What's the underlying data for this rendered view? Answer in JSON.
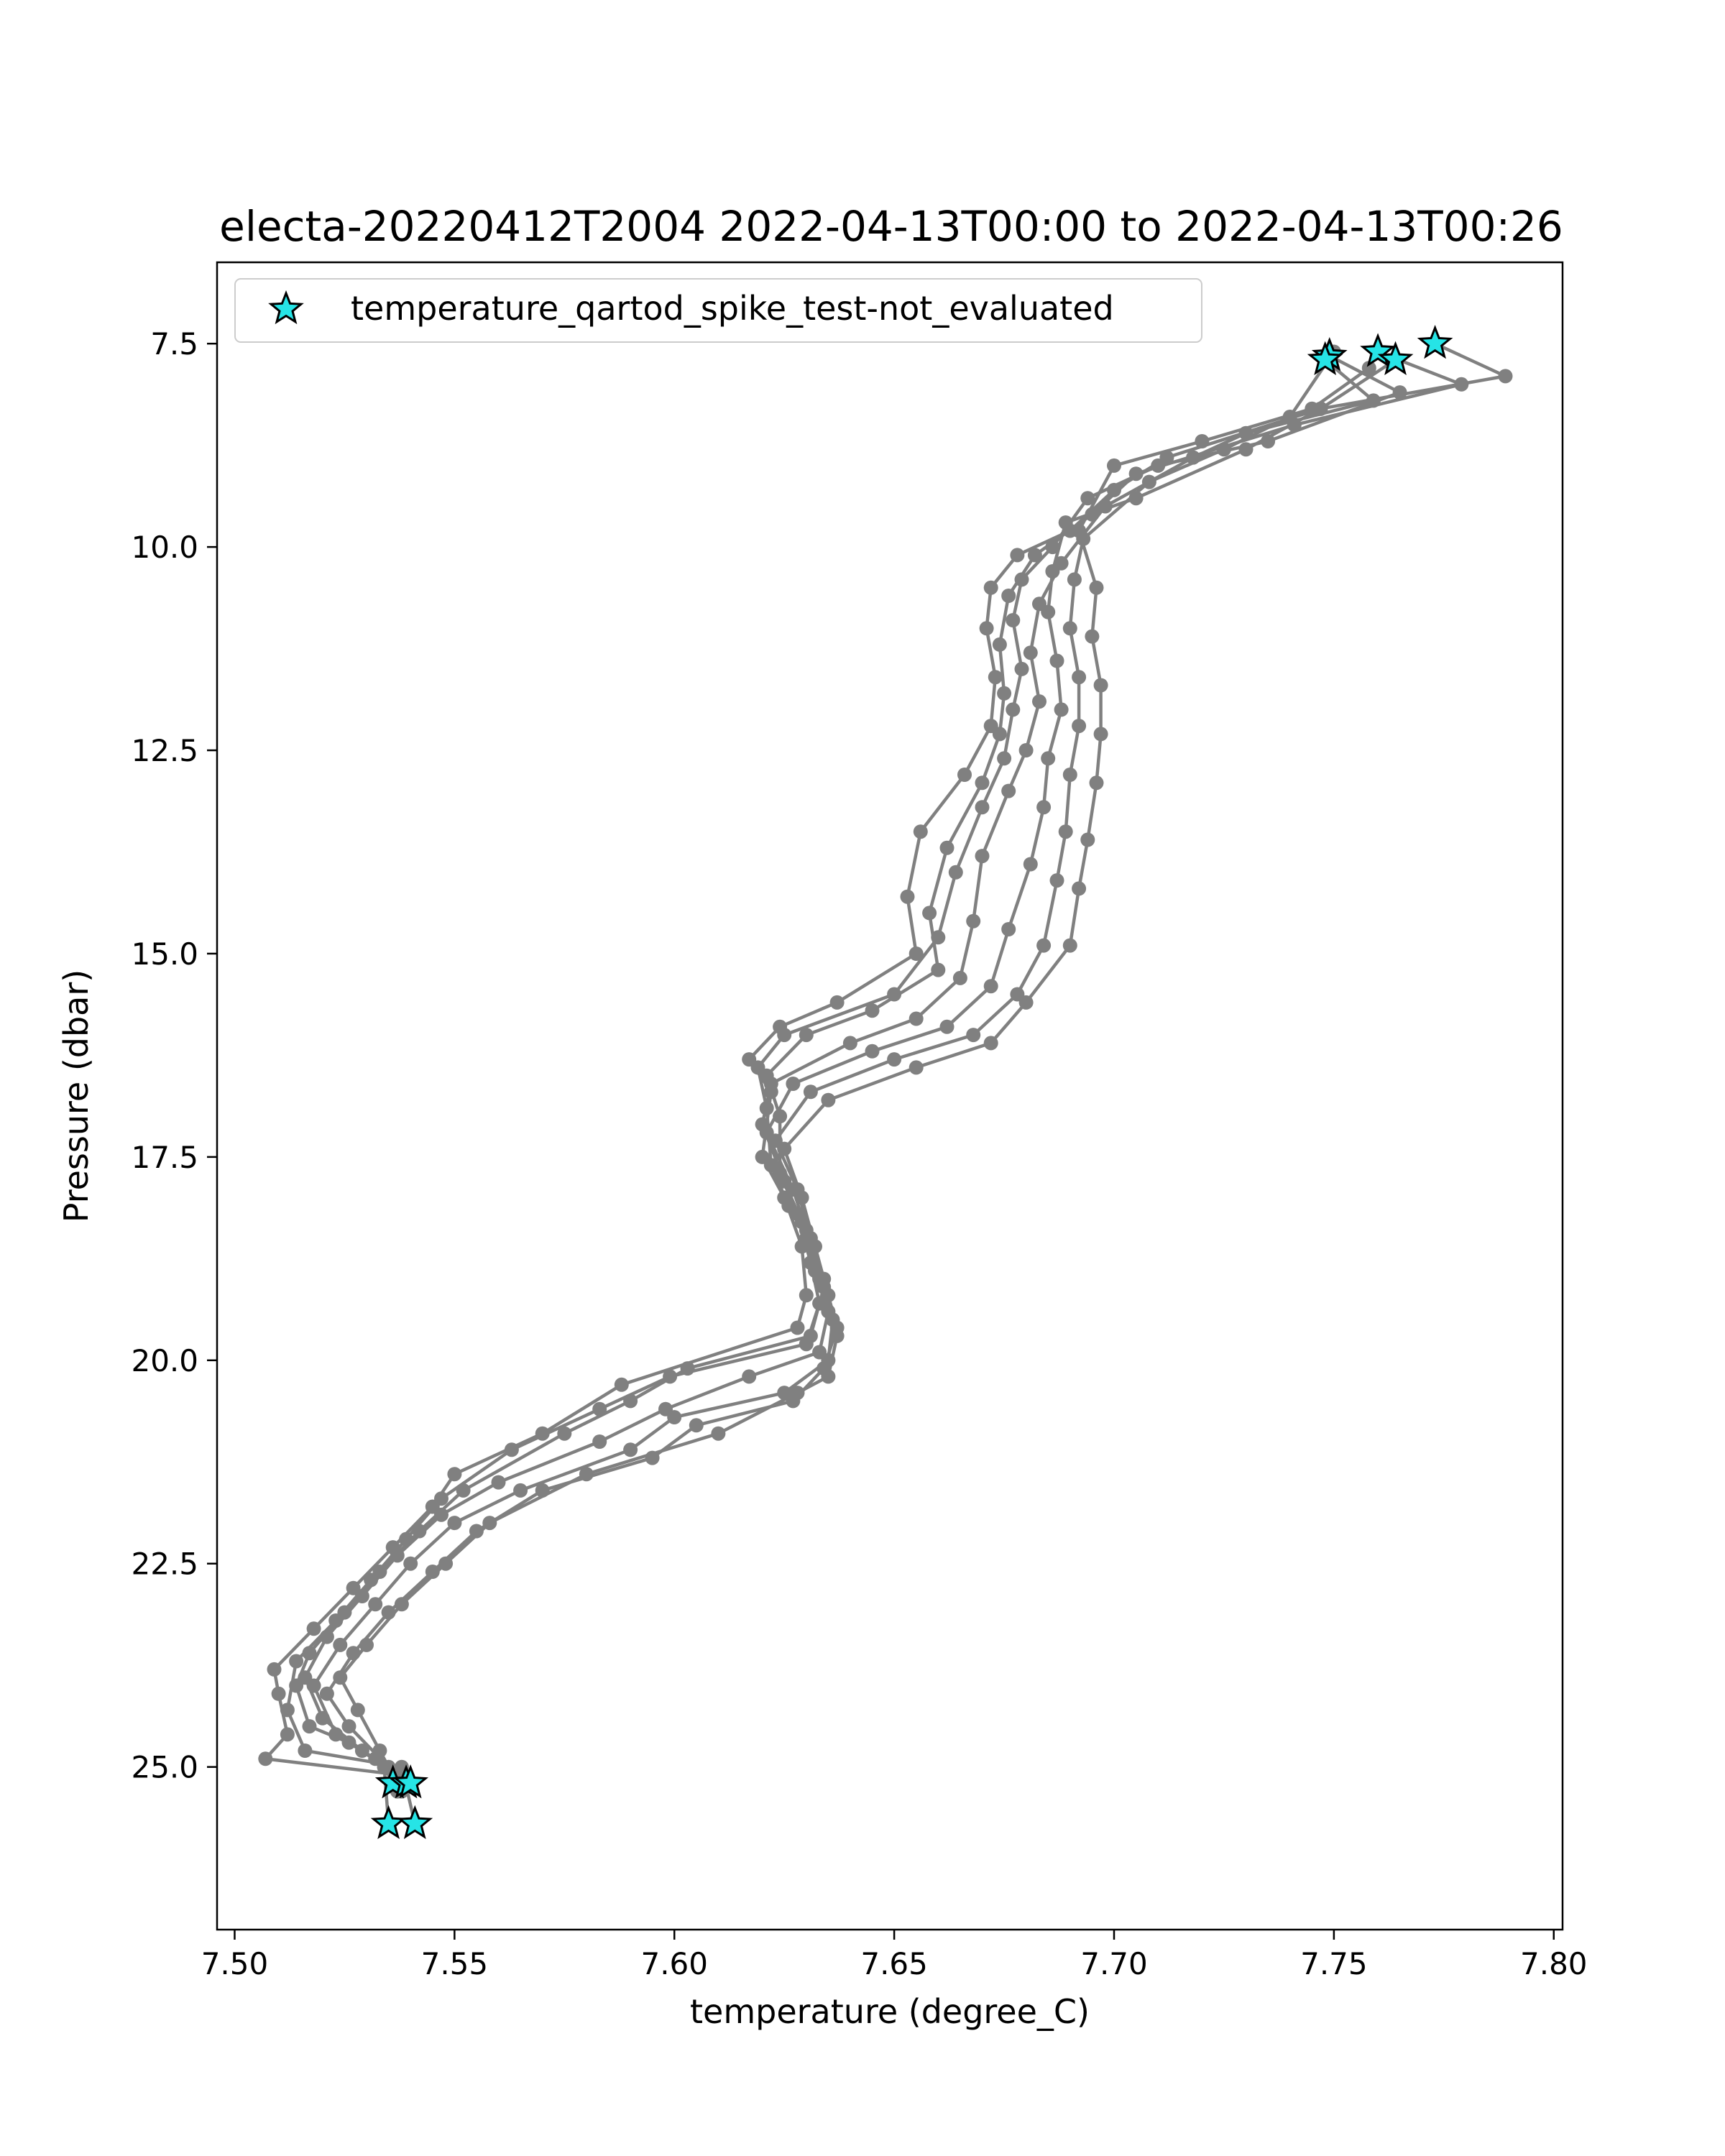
{
  "chart_data": {
    "type": "line",
    "title": "electa-20220412T2004 2022-04-13T00:00 to 2022-04-13T00:26",
    "xlabel": "temperature (degree_C)",
    "ylabel": "Pressure (dbar)",
    "xlim": [
      7.496,
      7.802
    ],
    "ylim": [
      27.0,
      6.5
    ],
    "y_inverted": true,
    "xticks": [
      7.5,
      7.55,
      7.6,
      7.65,
      7.7,
      7.75,
      7.8
    ],
    "xtick_labels": [
      "7.50",
      "7.55",
      "7.60",
      "7.65",
      "7.70",
      "7.75",
      "7.80"
    ],
    "yticks": [
      7.5,
      10.0,
      12.5,
      15.0,
      17.5,
      20.0,
      22.5,
      25.0
    ],
    "ytick_labels": [
      "7.5",
      "10.0",
      "12.5",
      "15.0",
      "17.5",
      "20.0",
      "22.5",
      "25.0"
    ],
    "grid": false,
    "legend_position": "top-left",
    "series": [
      {
        "kind": "line",
        "color": "#808080",
        "profiles": [
          [
            [
              7.773,
              7.5
            ],
            [
              7.789,
              7.9
            ],
            [
              7.747,
              8.3
            ],
            [
              7.712,
              8.9
            ],
            [
              7.7,
              9.3
            ],
            [
              7.69,
              9.8
            ],
            [
              7.678,
              10.1
            ],
            [
              7.672,
              10.5
            ],
            [
              7.671,
              11.0
            ],
            [
              7.673,
              11.6
            ],
            [
              7.672,
              12.2
            ],
            [
              7.666,
              12.8
            ],
            [
              7.656,
              13.5
            ],
            [
              7.653,
              14.3
            ],
            [
              7.655,
              15.0
            ],
            [
              7.637,
              15.6
            ],
            [
              7.624,
              15.9
            ],
            [
              7.617,
              16.3
            ],
            [
              7.622,
              16.7
            ],
            [
              7.62,
              17.5
            ],
            [
              7.625,
              18.0
            ],
            [
              7.629,
              18.6
            ],
            [
              7.63,
              19.2
            ],
            [
              7.628,
              19.6
            ],
            [
              7.588,
              20.3
            ],
            [
              7.57,
              20.9
            ],
            [
              7.55,
              21.4
            ],
            [
              7.545,
              21.8
            ],
            [
              7.536,
              22.3
            ],
            [
              7.527,
              22.8
            ],
            [
              7.518,
              23.3
            ],
            [
              7.509,
              23.8
            ],
            [
              7.51,
              24.1
            ],
            [
              7.512,
              24.6
            ],
            [
              7.507,
              24.9
            ],
            [
              7.538,
              25.1
            ],
            [
              7.536,
              25.2
            ]
          ],
          [
            [
              7.76,
              7.6
            ],
            [
              7.779,
              8.0
            ],
            [
              7.741,
              8.5
            ],
            [
              7.705,
              9.1
            ],
            [
              7.695,
              9.6
            ],
            [
              7.682,
              10.1
            ],
            [
              7.676,
              10.6
            ],
            [
              7.674,
              11.2
            ],
            [
              7.675,
              11.8
            ],
            [
              7.674,
              12.3
            ],
            [
              7.67,
              12.9
            ],
            [
              7.662,
              13.7
            ],
            [
              7.658,
              14.5
            ],
            [
              7.66,
              15.2
            ],
            [
              7.645,
              15.7
            ],
            [
              7.63,
              16.0
            ],
            [
              7.621,
              16.5
            ],
            [
              7.624,
              17.0
            ],
            [
              7.624,
              17.7
            ],
            [
              7.628,
              18.2
            ],
            [
              7.631,
              18.8
            ],
            [
              7.633,
              19.3
            ],
            [
              7.63,
              19.8
            ],
            [
              7.599,
              20.2
            ],
            [
              7.583,
              20.6
            ],
            [
              7.563,
              21.1
            ],
            [
              7.547,
              21.7
            ],
            [
              7.539,
              22.2
            ],
            [
              7.531,
              22.7
            ],
            [
              7.523,
              23.2
            ],
            [
              7.514,
              23.7
            ],
            [
              7.512,
              24.3
            ],
            [
              7.516,
              24.8
            ],
            [
              7.538,
              25.0
            ],
            [
              7.541,
              25.7
            ]
          ],
          [
            [
              7.749,
              7.65
            ],
            [
              7.765,
              8.1
            ],
            [
              7.735,
              8.7
            ],
            [
              7.71,
              9.0
            ],
            [
              7.694,
              9.4
            ],
            [
              7.686,
              10.0
            ],
            [
              7.679,
              10.4
            ],
            [
              7.677,
              10.9
            ],
            [
              7.679,
              11.5
            ],
            [
              7.677,
              12.0
            ],
            [
              7.675,
              12.6
            ],
            [
              7.67,
              13.2
            ],
            [
              7.664,
              14.0
            ],
            [
              7.66,
              14.8
            ],
            [
              7.65,
              15.5
            ],
            [
              7.625,
              16.0
            ],
            [
              7.619,
              16.4
            ],
            [
              7.621,
              16.9
            ],
            [
              7.622,
              17.6
            ],
            [
              7.626,
              18.1
            ],
            [
              7.63,
              18.5
            ],
            [
              7.634,
              19.1
            ],
            [
              7.631,
              19.7
            ],
            [
              7.603,
              20.1
            ],
            [
              7.59,
              20.5
            ],
            [
              7.575,
              20.9
            ],
            [
              7.552,
              21.6
            ],
            [
              7.542,
              22.1
            ],
            [
              7.533,
              22.6
            ],
            [
              7.525,
              23.1
            ],
            [
              7.517,
              23.6
            ],
            [
              7.514,
              24.0
            ],
            [
              7.517,
              24.5
            ],
            [
              7.526,
              24.7
            ],
            [
              7.54,
              25.2
            ]
          ],
          [
            [
              7.748,
              7.7
            ],
            [
              7.759,
              8.2
            ],
            [
              7.73,
              8.6
            ],
            [
              7.718,
              8.9
            ],
            [
              7.698,
              9.5
            ],
            [
              7.688,
              10.2
            ],
            [
              7.683,
              10.7
            ],
            [
              7.681,
              11.3
            ],
            [
              7.683,
              11.9
            ],
            [
              7.68,
              12.5
            ],
            [
              7.676,
              13.0
            ],
            [
              7.67,
              13.8
            ],
            [
              7.668,
              14.6
            ],
            [
              7.665,
              15.3
            ],
            [
              7.655,
              15.8
            ],
            [
              7.64,
              16.1
            ],
            [
              7.622,
              16.6
            ],
            [
              7.62,
              17.1
            ],
            [
              7.625,
              17.8
            ],
            [
              7.629,
              18.3
            ],
            [
              7.632,
              18.9
            ],
            [
              7.635,
              19.4
            ],
            [
              7.633,
              19.9
            ],
            [
              7.617,
              20.2
            ],
            [
              7.598,
              20.6
            ],
            [
              7.583,
              21.0
            ],
            [
              7.56,
              21.5
            ],
            [
              7.547,
              21.9
            ],
            [
              7.537,
              22.4
            ],
            [
              7.529,
              22.9
            ],
            [
              7.521,
              23.4
            ],
            [
              7.516,
              23.9
            ],
            [
              7.52,
              24.4
            ],
            [
              7.529,
              24.8
            ],
            [
              7.534,
              25.0
            ],
            [
              7.535,
              25.7
            ]
          ],
          [
            [
              7.764,
              7.7
            ],
            [
              7.747,
              8.3
            ],
            [
              7.73,
              8.8
            ],
            [
              7.705,
              9.4
            ],
            [
              7.689,
              9.7
            ],
            [
              7.686,
              10.3
            ],
            [
              7.685,
              10.8
            ],
            [
              7.687,
              11.4
            ],
            [
              7.688,
              12.0
            ],
            [
              7.685,
              12.6
            ],
            [
              7.684,
              13.2
            ],
            [
              7.681,
              13.9
            ],
            [
              7.676,
              14.7
            ],
            [
              7.672,
              15.4
            ],
            [
              7.662,
              15.9
            ],
            [
              7.645,
              16.2
            ],
            [
              7.627,
              16.6
            ],
            [
              7.621,
              17.2
            ],
            [
              7.627,
              17.9
            ],
            [
              7.63,
              18.4
            ],
            [
              7.633,
              19.0
            ],
            [
              7.636,
              19.5
            ],
            [
              7.635,
              20.0
            ],
            [
              7.625,
              20.4
            ],
            [
              7.6,
              20.7
            ],
            [
              7.59,
              21.1
            ],
            [
              7.565,
              21.6
            ],
            [
              7.55,
              22.0
            ],
            [
              7.54,
              22.5
            ],
            [
              7.532,
              23.0
            ],
            [
              7.524,
              23.5
            ],
            [
              7.518,
              24.0
            ],
            [
              7.523,
              24.6
            ],
            [
              7.532,
              24.9
            ],
            [
              7.538,
              25.3
            ]
          ],
          [
            [
              7.75,
              7.6
            ],
            [
              7.74,
              8.4
            ],
            [
              7.725,
              8.8
            ],
            [
              7.708,
              9.2
            ],
            [
              7.693,
              9.9
            ],
            [
              7.691,
              10.4
            ],
            [
              7.69,
              11.0
            ],
            [
              7.692,
              11.6
            ],
            [
              7.692,
              12.2
            ],
            [
              7.69,
              12.8
            ],
            [
              7.689,
              13.5
            ],
            [
              7.687,
              14.1
            ],
            [
              7.684,
              14.9
            ],
            [
              7.678,
              15.5
            ],
            [
              7.668,
              16.0
            ],
            [
              7.65,
              16.3
            ],
            [
              7.631,
              16.7
            ],
            [
              7.623,
              17.3
            ],
            [
              7.628,
              17.9
            ],
            [
              7.631,
              18.5
            ],
            [
              7.634,
              19.0
            ],
            [
              7.637,
              19.6
            ],
            [
              7.634,
              20.1
            ],
            [
              7.627,
              20.5
            ],
            [
              7.605,
              20.8
            ],
            [
              7.595,
              21.2
            ],
            [
              7.57,
              21.6
            ],
            [
              7.555,
              22.1
            ],
            [
              7.545,
              22.6
            ],
            [
              7.535,
              23.1
            ],
            [
              7.527,
              23.6
            ],
            [
              7.521,
              24.1
            ],
            [
              7.526,
              24.5
            ],
            [
              7.535,
              25.0
            ],
            [
              7.537,
              25.3
            ]
          ],
          [
            [
              7.758,
              7.8
            ],
            [
              7.745,
              8.3
            ],
            [
              7.72,
              8.7
            ],
            [
              7.7,
              9.0
            ],
            [
              7.692,
              9.8
            ],
            [
              7.696,
              10.5
            ],
            [
              7.695,
              11.1
            ],
            [
              7.697,
              11.7
            ],
            [
              7.697,
              12.3
            ],
            [
              7.696,
              12.9
            ],
            [
              7.694,
              13.6
            ],
            [
              7.692,
              14.2
            ],
            [
              7.69,
              14.9
            ],
            [
              7.68,
              15.6
            ],
            [
              7.672,
              16.1
            ],
            [
              7.655,
              16.4
            ],
            [
              7.635,
              16.8
            ],
            [
              7.625,
              17.4
            ],
            [
              7.629,
              18.0
            ],
            [
              7.632,
              18.6
            ],
            [
              7.635,
              19.2
            ],
            [
              7.637,
              19.7
            ],
            [
              7.635,
              20.2
            ],
            [
              7.628,
              20.4
            ],
            [
              7.61,
              20.9
            ],
            [
              7.58,
              21.4
            ],
            [
              7.558,
              22.0
            ],
            [
              7.548,
              22.5
            ],
            [
              7.538,
              23.0
            ],
            [
              7.53,
              23.5
            ],
            [
              7.524,
              23.9
            ],
            [
              7.528,
              24.3
            ],
            [
              7.533,
              24.8
            ],
            [
              7.537,
              25.2
            ]
          ]
        ]
      },
      {
        "kind": "scatter",
        "name": "temperature_qartod_spike_test-not_evaluated",
        "marker": "star",
        "color": "#26e4e6",
        "edge_color": "#000000",
        "points": [
          [
            7.749,
            7.65
          ],
          [
            7.748,
            7.7
          ],
          [
            7.76,
            7.6
          ],
          [
            7.764,
            7.7
          ],
          [
            7.773,
            7.5
          ],
          [
            7.536,
            25.2
          ],
          [
            7.539,
            25.2
          ],
          [
            7.54,
            25.2
          ],
          [
            7.535,
            25.7
          ],
          [
            7.541,
            25.7
          ]
        ]
      }
    ]
  }
}
